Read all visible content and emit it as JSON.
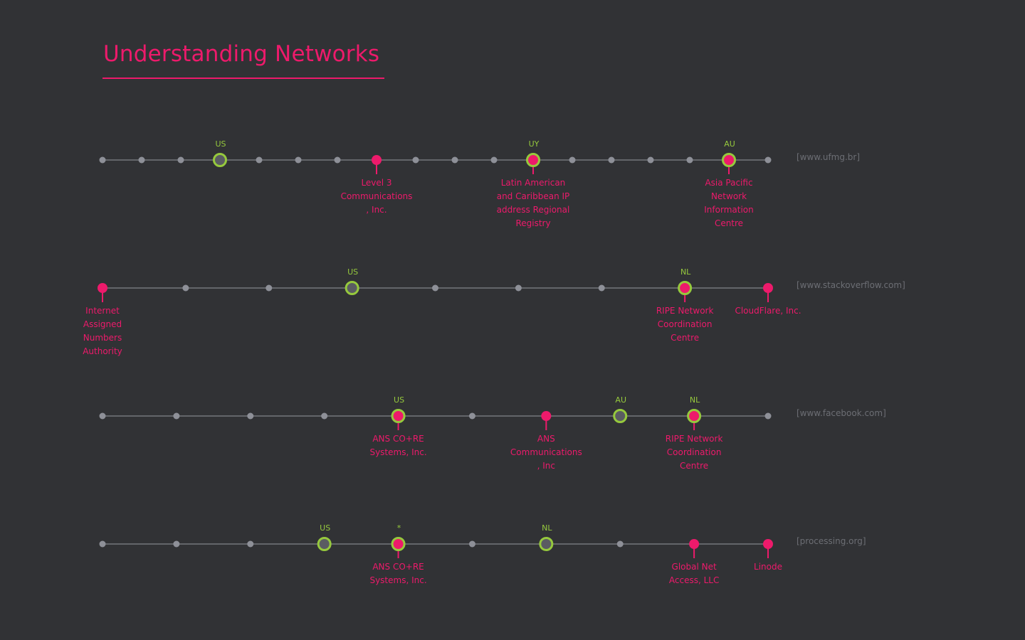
{
  "title": "Understanding Networks",
  "colors": {
    "background": "#313235",
    "line": "#63656a",
    "hop": "#8e9098",
    "accent": "#ed1a6b",
    "country": "#96c93d",
    "host": "#6c6e74",
    "ring_fill": "#5a5c62"
  },
  "routes": [
    {
      "host": "[www.ufmg.br]",
      "hops": [
        {
          "type": "hop"
        },
        {
          "type": "hop"
        },
        {
          "type": "hop"
        },
        {
          "type": "ring",
          "country": "US"
        },
        {
          "type": "hop"
        },
        {
          "type": "hop"
        },
        {
          "type": "hop"
        },
        {
          "type": "pin",
          "label": [
            "Level 3",
            "Communications",
            ", Inc."
          ]
        },
        {
          "type": "hop"
        },
        {
          "type": "hop"
        },
        {
          "type": "hop"
        },
        {
          "type": "ringpin",
          "country": "UY",
          "label": [
            "Latin American",
            "and Caribbean IP",
            "address Regional",
            "Registry"
          ]
        },
        {
          "type": "hop"
        },
        {
          "type": "hop"
        },
        {
          "type": "hop"
        },
        {
          "type": "hop"
        },
        {
          "type": "ringpin",
          "country": "AU",
          "label": [
            "Asia Pacific",
            "Network",
            "Information",
            "Centre"
          ]
        },
        {
          "type": "hop"
        }
      ]
    },
    {
      "host": "[www.stackoverflow.com]",
      "hops": [
        {
          "type": "pin",
          "label": [
            "Internet",
            "Assigned",
            "Numbers",
            "Authority"
          ]
        },
        {
          "type": "hop"
        },
        {
          "type": "hop"
        },
        {
          "type": "ring",
          "country": "US"
        },
        {
          "type": "hop"
        },
        {
          "type": "hop"
        },
        {
          "type": "hop"
        },
        {
          "type": "ringpin",
          "country": "NL",
          "label": [
            "RIPE Network",
            "Coordination",
            "Centre"
          ]
        },
        {
          "type": "pin",
          "label": [
            "CloudFlare, Inc."
          ]
        }
      ]
    },
    {
      "host": "[www.facebook.com]",
      "hops": [
        {
          "type": "hop"
        },
        {
          "type": "hop"
        },
        {
          "type": "hop"
        },
        {
          "type": "hop"
        },
        {
          "type": "ringpin",
          "country": "US",
          "label": [
            "ANS CO+RE",
            "Systems, Inc."
          ]
        },
        {
          "type": "hop"
        },
        {
          "type": "pin",
          "label": [
            "ANS",
            "Communications",
            ", Inc"
          ]
        },
        {
          "type": "ring",
          "country": "AU"
        },
        {
          "type": "ringpin",
          "country": "NL",
          "label": [
            "RIPE Network",
            "Coordination",
            "Centre"
          ]
        },
        {
          "type": "hop"
        }
      ]
    },
    {
      "host": "[processing.org]",
      "hops": [
        {
          "type": "hop"
        },
        {
          "type": "hop"
        },
        {
          "type": "hop"
        },
        {
          "type": "ring",
          "country": "US"
        },
        {
          "type": "ringpin",
          "country": "*",
          "label": [
            "ANS CO+RE",
            "Systems, Inc."
          ]
        },
        {
          "type": "hop"
        },
        {
          "type": "ring",
          "country": "NL"
        },
        {
          "type": "hop"
        },
        {
          "type": "pin",
          "label": [
            "Global Net",
            "Access, LLC"
          ]
        },
        {
          "type": "pin",
          "label": [
            "Linode"
          ]
        }
      ]
    }
  ]
}
